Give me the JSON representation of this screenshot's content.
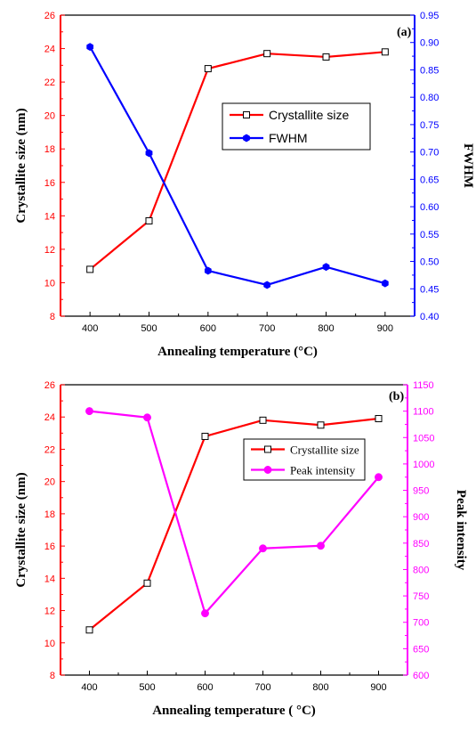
{
  "chart_data": [
    {
      "type": "line",
      "panel_label": "(a)",
      "xlabel": "Annealing temperature (°C)",
      "x": [
        400,
        500,
        600,
        700,
        800,
        900
      ],
      "xlim": [
        350,
        950
      ],
      "xticks": [
        400,
        500,
        600,
        700,
        800,
        900
      ],
      "grid": false,
      "legend_position": "center-right",
      "axes": {
        "left": {
          "label": "Crystallite size (nm)",
          "lim": [
            8,
            26
          ],
          "ticks": [
            8,
            10,
            12,
            14,
            16,
            18,
            20,
            22,
            24,
            26
          ],
          "color": "#ff0000"
        },
        "right": {
          "label": "FWHM",
          "lim": [
            0.4,
            0.95
          ],
          "ticks": [
            "0.40",
            "0.45",
            "0.50",
            "0.55",
            "0.60",
            "0.65",
            "0.70",
            "0.75",
            "0.80",
            "0.85",
            "0.90",
            "0.95"
          ],
          "color": "#0000ff"
        }
      },
      "series": [
        {
          "name": "Crystallite size",
          "axis": "left",
          "color": "#ff0000",
          "marker": "open-square",
          "values": [
            10.8,
            13.7,
            22.8,
            23.7,
            23.5,
            23.8
          ]
        },
        {
          "name": "FWHM",
          "axis": "right",
          "color": "#0000ff",
          "marker": "filled-hexagon",
          "values": [
            0.892,
            0.698,
            0.483,
            0.457,
            0.49,
            0.46
          ]
        }
      ]
    },
    {
      "type": "line",
      "panel_label": "(b)",
      "xlabel": "Annealing temperature ( °C)",
      "x": [
        400,
        500,
        600,
        700,
        800,
        900
      ],
      "xlim": [
        350,
        950
      ],
      "xticks": [
        400,
        500,
        600,
        700,
        800,
        900
      ],
      "grid": false,
      "legend_position": "top-right",
      "axes": {
        "left": {
          "label": "Crystallite size (nm)",
          "lim": [
            8,
            26
          ],
          "ticks": [
            8,
            10,
            12,
            14,
            16,
            18,
            20,
            22,
            24,
            26
          ],
          "color": "#ff0000"
        },
        "right": {
          "label": "Peak intensity",
          "lim": [
            600,
            1150
          ],
          "ticks": [
            600,
            650,
            700,
            750,
            800,
            850,
            900,
            950,
            1000,
            1050,
            1100,
            1150
          ],
          "color": "#ff00ff"
        }
      },
      "series": [
        {
          "name": "Crystallite size",
          "axis": "left",
          "color": "#ff0000",
          "marker": "open-square",
          "values": [
            10.8,
            13.7,
            22.8,
            23.8,
            23.5,
            23.9
          ]
        },
        {
          "name": "Peak intensity",
          "axis": "right",
          "color": "#ff00ff",
          "marker": "filled-circle",
          "values": [
            1100,
            1088,
            717,
            840,
            845,
            975
          ]
        }
      ]
    }
  ]
}
